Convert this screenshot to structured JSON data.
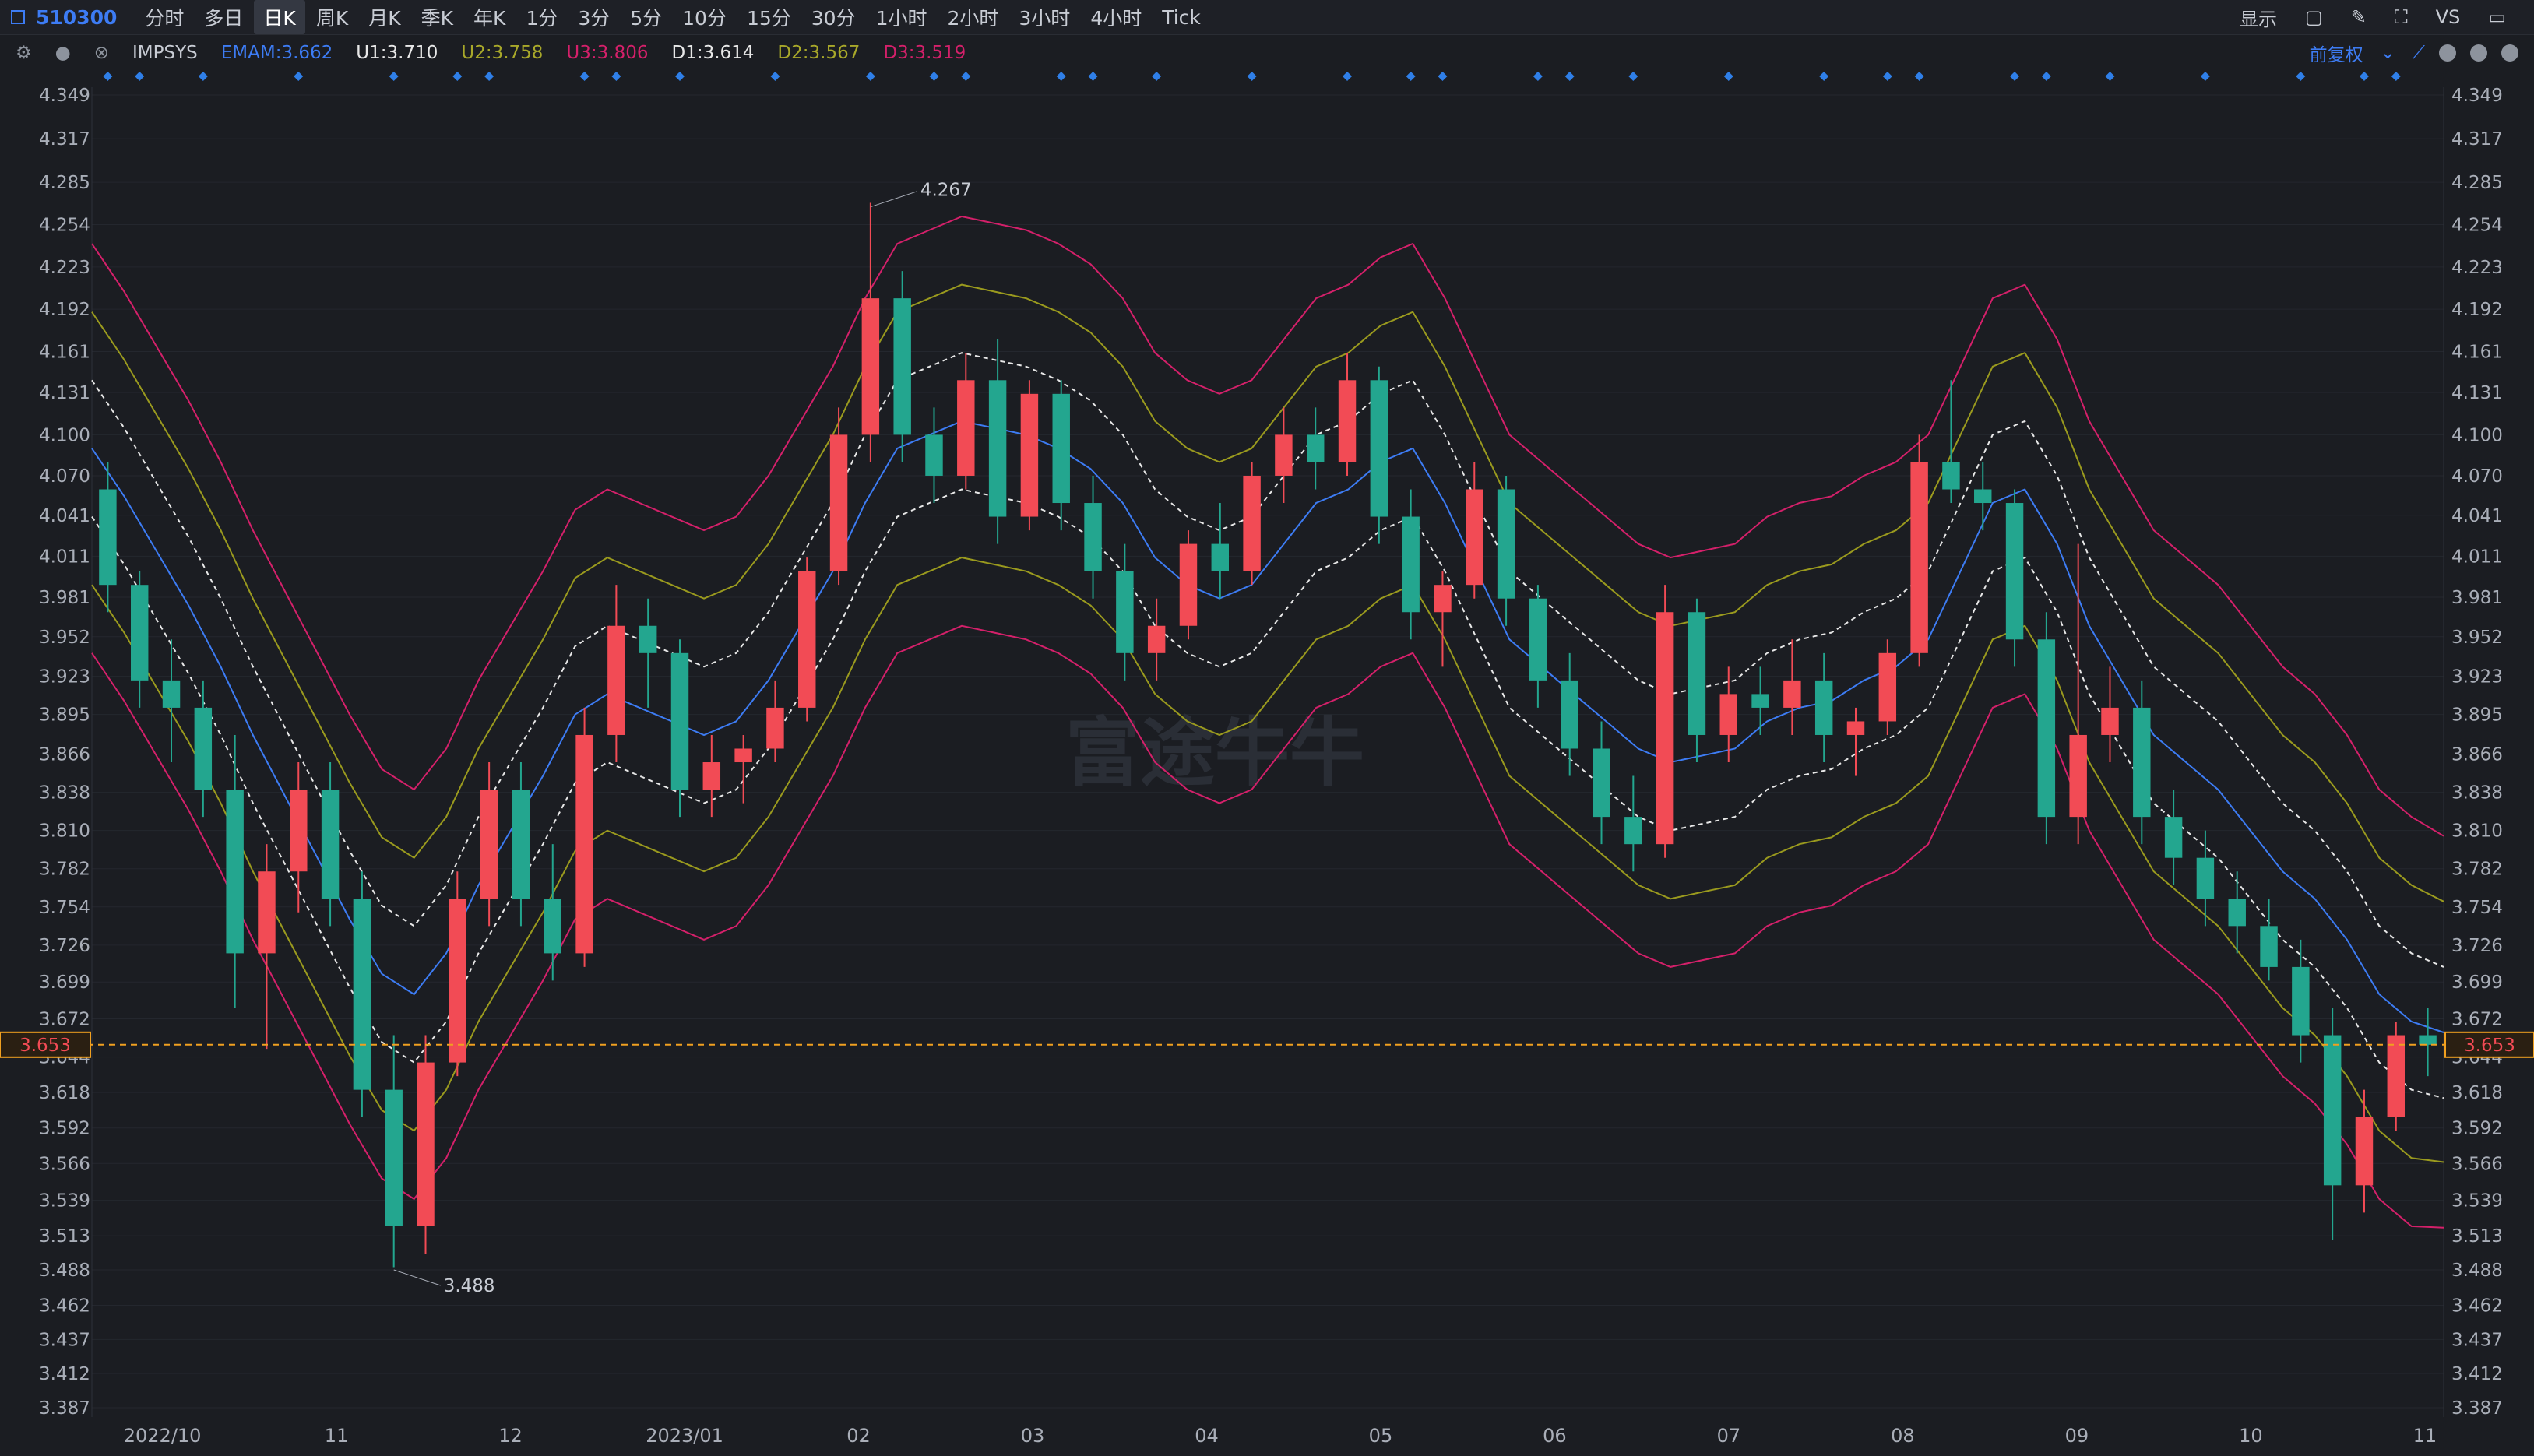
{
  "toolbar": {
    "symbol": "510300",
    "timeframes": [
      "分时",
      "多日",
      "日K",
      "周K",
      "月K",
      "季K",
      "年K",
      "1分",
      "3分",
      "5分",
      "10分",
      "15分",
      "30分",
      "1小时",
      "2小时",
      "3小时",
      "4小时",
      "Tick"
    ],
    "active_timeframe": "日K",
    "display_label": "显示",
    "vs_label": "VS"
  },
  "indicators": {
    "name": "IMPSYS",
    "emam": "EMAM:3.662",
    "u1": "U1:3.710",
    "u2": "U2:3.758",
    "u3": "U3:3.806",
    "d1": "D1:3.614",
    "d2": "D2:3.567",
    "d3": "D3:3.519",
    "adjust_label": "前复权"
  },
  "colors": {
    "background": "#1b1d22",
    "up": "#f24b55",
    "down": "#23a68f",
    "doji": "#b4bcd0",
    "emam": "#3d7cf4",
    "band1": "#e8e8e8",
    "band2": "#9a9a1e",
    "band3": "#d4206a",
    "price_line": "#f0a020"
  },
  "watermark": "富途牛牛",
  "chart_data": {
    "type": "candlestick",
    "ylim": [
      3.387,
      4.349
    ],
    "y_ticks": [
      "4.349",
      "4.317",
      "4.285",
      "4.254",
      "4.223",
      "4.192",
      "4.161",
      "4.131",
      "4.100",
      "4.070",
      "4.041",
      "4.011",
      "3.981",
      "3.952",
      "3.923",
      "3.895",
      "3.866",
      "3.838",
      "3.810",
      "3.782",
      "3.754",
      "3.726",
      "3.699",
      "3.672",
      "3.644",
      "3.618",
      "3.592",
      "3.566",
      "3.539",
      "3.513",
      "3.488",
      "3.462",
      "3.437",
      "3.412",
      "3.387"
    ],
    "x_ticks": [
      "2022/10",
      "11",
      "12",
      "2023/01",
      "02",
      "03",
      "04",
      "05",
      "06",
      "07",
      "08",
      "09",
      "10",
      "11"
    ],
    "current_price": "3.653",
    "annotations": {
      "high": "4.267",
      "low": "3.488"
    },
    "series": [
      {
        "name": "EMAM",
        "values": [
          4.09,
          4.055,
          4.015,
          3.975,
          3.93,
          3.88,
          3.835,
          3.79,
          3.745,
          3.705,
          3.69,
          3.72,
          3.77,
          3.81,
          3.85,
          3.895,
          3.91,
          3.9,
          3.89,
          3.88,
          3.89,
          3.92,
          3.96,
          4.0,
          4.05,
          4.09,
          4.1,
          4.11,
          4.105,
          4.1,
          4.09,
          4.075,
          4.05,
          4.01,
          3.99,
          3.98,
          3.99,
          4.02,
          4.05,
          4.06,
          4.08,
          4.09,
          4.05,
          4.0,
          3.95,
          3.93,
          3.91,
          3.89,
          3.87,
          3.86,
          3.865,
          3.87,
          3.89,
          3.9,
          3.905,
          3.92,
          3.93,
          3.95,
          4.0,
          4.05,
          4.06,
          4.02,
          3.96,
          3.92,
          3.88,
          3.86,
          3.84,
          3.81,
          3.78,
          3.76,
          3.73,
          3.69,
          3.67,
          3.662
        ]
      },
      {
        "name": "U1",
        "values": [
          4.14,
          4.105,
          4.065,
          4.025,
          3.98,
          3.93,
          3.885,
          3.84,
          3.795,
          3.755,
          3.74,
          3.77,
          3.82,
          3.86,
          3.9,
          3.945,
          3.96,
          3.95,
          3.94,
          3.93,
          3.94,
          3.97,
          4.01,
          4.05,
          4.1,
          4.14,
          4.15,
          4.16,
          4.155,
          4.15,
          4.14,
          4.125,
          4.1,
          4.06,
          4.04,
          4.03,
          4.04,
          4.07,
          4.1,
          4.11,
          4.13,
          4.14,
          4.1,
          4.05,
          4.0,
          3.98,
          3.96,
          3.94,
          3.92,
          3.91,
          3.915,
          3.92,
          3.94,
          3.95,
          3.955,
          3.97,
          3.98,
          4.0,
          4.05,
          4.1,
          4.11,
          4.07,
          4.01,
          3.97,
          3.93,
          3.91,
          3.89,
          3.86,
          3.83,
          3.81,
          3.78,
          3.74,
          3.72,
          3.71
        ]
      },
      {
        "name": "D1",
        "values": [
          4.04,
          4.005,
          3.965,
          3.925,
          3.88,
          3.83,
          3.785,
          3.74,
          3.695,
          3.655,
          3.64,
          3.67,
          3.72,
          3.76,
          3.8,
          3.845,
          3.86,
          3.85,
          3.84,
          3.83,
          3.84,
          3.87,
          3.91,
          3.95,
          4.0,
          4.04,
          4.05,
          4.06,
          4.055,
          4.05,
          4.04,
          4.025,
          4.0,
          3.96,
          3.94,
          3.93,
          3.94,
          3.97,
          4.0,
          4.01,
          4.03,
          4.04,
          4.0,
          3.95,
          3.9,
          3.88,
          3.86,
          3.84,
          3.82,
          3.81,
          3.815,
          3.82,
          3.84,
          3.85,
          3.855,
          3.87,
          3.88,
          3.9,
          3.95,
          4.0,
          4.01,
          3.97,
          3.91,
          3.87,
          3.83,
          3.81,
          3.79,
          3.76,
          3.73,
          3.71,
          3.68,
          3.64,
          3.62,
          3.614
        ]
      },
      {
        "name": "U2",
        "values": [
          4.19,
          4.155,
          4.115,
          4.075,
          4.03,
          3.98,
          3.935,
          3.89,
          3.845,
          3.805,
          3.79,
          3.82,
          3.87,
          3.91,
          3.95,
          3.995,
          4.01,
          4.0,
          3.99,
          3.98,
          3.99,
          4.02,
          4.06,
          4.1,
          4.15,
          4.19,
          4.2,
          4.21,
          4.205,
          4.2,
          4.19,
          4.175,
          4.15,
          4.11,
          4.09,
          4.08,
          4.09,
          4.12,
          4.15,
          4.16,
          4.18,
          4.19,
          4.15,
          4.1,
          4.05,
          4.03,
          4.01,
          3.99,
          3.97,
          3.96,
          3.965,
          3.97,
          3.99,
          4.0,
          4.005,
          4.02,
          4.03,
          4.05,
          4.1,
          4.15,
          4.16,
          4.12,
          4.06,
          4.02,
          3.98,
          3.96,
          3.94,
          3.91,
          3.88,
          3.86,
          3.83,
          3.79,
          3.77,
          3.758
        ]
      },
      {
        "name": "D2",
        "values": [
          3.99,
          3.955,
          3.915,
          3.875,
          3.83,
          3.78,
          3.735,
          3.69,
          3.645,
          3.605,
          3.59,
          3.62,
          3.67,
          3.71,
          3.75,
          3.795,
          3.81,
          3.8,
          3.79,
          3.78,
          3.79,
          3.82,
          3.86,
          3.9,
          3.95,
          3.99,
          4.0,
          4.01,
          4.005,
          4.0,
          3.99,
          3.975,
          3.95,
          3.91,
          3.89,
          3.88,
          3.89,
          3.92,
          3.95,
          3.96,
          3.98,
          3.99,
          3.95,
          3.9,
          3.85,
          3.83,
          3.81,
          3.79,
          3.77,
          3.76,
          3.765,
          3.77,
          3.79,
          3.8,
          3.805,
          3.82,
          3.83,
          3.85,
          3.9,
          3.95,
          3.96,
          3.92,
          3.86,
          3.82,
          3.78,
          3.76,
          3.74,
          3.71,
          3.68,
          3.66,
          3.63,
          3.59,
          3.57,
          3.567
        ]
      },
      {
        "name": "U3",
        "values": [
          4.24,
          4.205,
          4.165,
          4.125,
          4.08,
          4.03,
          3.985,
          3.94,
          3.895,
          3.855,
          3.84,
          3.87,
          3.92,
          3.96,
          4.0,
          4.045,
          4.06,
          4.05,
          4.04,
          4.03,
          4.04,
          4.07,
          4.11,
          4.15,
          4.2,
          4.24,
          4.25,
          4.26,
          4.255,
          4.25,
          4.24,
          4.225,
          4.2,
          4.16,
          4.14,
          4.13,
          4.14,
          4.17,
          4.2,
          4.21,
          4.23,
          4.24,
          4.2,
          4.15,
          4.1,
          4.08,
          4.06,
          4.04,
          4.02,
          4.01,
          4.015,
          4.02,
          4.04,
          4.05,
          4.055,
          4.07,
          4.08,
          4.1,
          4.15,
          4.2,
          4.21,
          4.17,
          4.11,
          4.07,
          4.03,
          4.01,
          3.99,
          3.96,
          3.93,
          3.91,
          3.88,
          3.84,
          3.82,
          3.806
        ]
      },
      {
        "name": "D3",
        "values": [
          3.94,
          3.905,
          3.865,
          3.825,
          3.78,
          3.73,
          3.685,
          3.64,
          3.595,
          3.555,
          3.54,
          3.57,
          3.62,
          3.66,
          3.7,
          3.745,
          3.76,
          3.75,
          3.74,
          3.73,
          3.74,
          3.77,
          3.81,
          3.85,
          3.9,
          3.94,
          3.95,
          3.96,
          3.955,
          3.95,
          3.94,
          3.925,
          3.9,
          3.86,
          3.84,
          3.83,
          3.84,
          3.87,
          3.9,
          3.91,
          3.93,
          3.94,
          3.9,
          3.85,
          3.8,
          3.78,
          3.76,
          3.74,
          3.72,
          3.71,
          3.715,
          3.72,
          3.74,
          3.75,
          3.755,
          3.77,
          3.78,
          3.8,
          3.85,
          3.9,
          3.91,
          3.87,
          3.81,
          3.77,
          3.73,
          3.71,
          3.69,
          3.66,
          3.63,
          3.61,
          3.58,
          3.54,
          3.52,
          3.519
        ]
      }
    ],
    "candles": [
      {
        "o": 4.06,
        "h": 4.08,
        "l": 3.97,
        "c": 3.99
      },
      {
        "o": 3.99,
        "h": 4.0,
        "l": 3.9,
        "c": 3.92
      },
      {
        "o": 3.92,
        "h": 3.95,
        "l": 3.86,
        "c": 3.9
      },
      {
        "o": 3.9,
        "h": 3.92,
        "l": 3.82,
        "c": 3.84
      },
      {
        "o": 3.84,
        "h": 3.88,
        "l": 3.68,
        "c": 3.72
      },
      {
        "o": 3.72,
        "h": 3.8,
        "l": 3.65,
        "c": 3.78
      },
      {
        "o": 3.78,
        "h": 3.86,
        "l": 3.75,
        "c": 3.84
      },
      {
        "o": 3.84,
        "h": 3.86,
        "l": 3.74,
        "c": 3.76
      },
      {
        "o": 3.76,
        "h": 3.78,
        "l": 3.6,
        "c": 3.62
      },
      {
        "o": 3.62,
        "h": 3.66,
        "l": 3.49,
        "c": 3.52
      },
      {
        "o": 3.52,
        "h": 3.66,
        "l": 3.5,
        "c": 3.64
      },
      {
        "o": 3.64,
        "h": 3.78,
        "l": 3.63,
        "c": 3.76
      },
      {
        "o": 3.76,
        "h": 3.86,
        "l": 3.74,
        "c": 3.84
      },
      {
        "o": 3.84,
        "h": 3.86,
        "l": 3.74,
        "c": 3.76
      },
      {
        "o": 3.76,
        "h": 3.8,
        "l": 3.7,
        "c": 3.72
      },
      {
        "o": 3.72,
        "h": 3.9,
        "l": 3.71,
        "c": 3.88
      },
      {
        "o": 3.88,
        "h": 3.99,
        "l": 3.86,
        "c": 3.96
      },
      {
        "o": 3.96,
        "h": 3.98,
        "l": 3.9,
        "c": 3.94
      },
      {
        "o": 3.94,
        "h": 3.95,
        "l": 3.82,
        "c": 3.84
      },
      {
        "o": 3.84,
        "h": 3.88,
        "l": 3.82,
        "c": 3.86
      },
      {
        "o": 3.86,
        "h": 3.88,
        "l": 3.83,
        "c": 3.87
      },
      {
        "o": 3.87,
        "h": 3.92,
        "l": 3.86,
        "c": 3.9
      },
      {
        "o": 3.9,
        "h": 4.01,
        "l": 3.89,
        "c": 4.0
      },
      {
        "o": 4.0,
        "h": 4.12,
        "l": 3.99,
        "c": 4.1
      },
      {
        "o": 4.1,
        "h": 4.27,
        "l": 4.08,
        "c": 4.2
      },
      {
        "o": 4.2,
        "h": 4.22,
        "l": 4.08,
        "c": 4.1
      },
      {
        "o": 4.1,
        "h": 4.12,
        "l": 4.05,
        "c": 4.07
      },
      {
        "o": 4.07,
        "h": 4.16,
        "l": 4.06,
        "c": 4.14
      },
      {
        "o": 4.14,
        "h": 4.17,
        "l": 4.02,
        "c": 4.04
      },
      {
        "o": 4.04,
        "h": 4.14,
        "l": 4.03,
        "c": 4.13
      },
      {
        "o": 4.13,
        "h": 4.14,
        "l": 4.03,
        "c": 4.05
      },
      {
        "o": 4.05,
        "h": 4.07,
        "l": 3.98,
        "c": 4.0
      },
      {
        "o": 4.0,
        "h": 4.02,
        "l": 3.92,
        "c": 3.94
      },
      {
        "o": 3.94,
        "h": 3.98,
        "l": 3.92,
        "c": 3.96
      },
      {
        "o": 3.96,
        "h": 4.03,
        "l": 3.95,
        "c": 4.02
      },
      {
        "o": 4.02,
        "h": 4.05,
        "l": 3.98,
        "c": 4.0
      },
      {
        "o": 4.0,
        "h": 4.08,
        "l": 3.99,
        "c": 4.07
      },
      {
        "o": 4.07,
        "h": 4.12,
        "l": 4.05,
        "c": 4.1
      },
      {
        "o": 4.1,
        "h": 4.12,
        "l": 4.06,
        "c": 4.08
      },
      {
        "o": 4.08,
        "h": 4.16,
        "l": 4.07,
        "c": 4.14
      },
      {
        "o": 4.14,
        "h": 4.15,
        "l": 4.02,
        "c": 4.04
      },
      {
        "o": 4.04,
        "h": 4.06,
        "l": 3.95,
        "c": 3.97
      },
      {
        "o": 3.97,
        "h": 4.0,
        "l": 3.93,
        "c": 3.99
      },
      {
        "o": 3.99,
        "h": 4.08,
        "l": 3.98,
        "c": 4.06
      },
      {
        "o": 4.06,
        "h": 4.07,
        "l": 3.96,
        "c": 3.98
      },
      {
        "o": 3.98,
        "h": 3.99,
        "l": 3.9,
        "c": 3.92
      },
      {
        "o": 3.92,
        "h": 3.94,
        "l": 3.85,
        "c": 3.87
      },
      {
        "o": 3.87,
        "h": 3.89,
        "l": 3.8,
        "c": 3.82
      },
      {
        "o": 3.82,
        "h": 3.85,
        "l": 3.78,
        "c": 3.8
      },
      {
        "o": 3.8,
        "h": 3.99,
        "l": 3.79,
        "c": 3.97
      },
      {
        "o": 3.97,
        "h": 3.98,
        "l": 3.86,
        "c": 3.88
      },
      {
        "o": 3.88,
        "h": 3.93,
        "l": 3.86,
        "c": 3.91
      },
      {
        "o": 3.91,
        "h": 3.93,
        "l": 3.88,
        "c": 3.9
      },
      {
        "o": 3.9,
        "h": 3.95,
        "l": 3.88,
        "c": 3.92
      },
      {
        "o": 3.92,
        "h": 3.94,
        "l": 3.86,
        "c": 3.88
      },
      {
        "o": 3.88,
        "h": 3.9,
        "l": 3.85,
        "c": 3.89
      },
      {
        "o": 3.89,
        "h": 3.95,
        "l": 3.88,
        "c": 3.94
      },
      {
        "o": 3.94,
        "h": 4.1,
        "l": 3.93,
        "c": 4.08
      },
      {
        "o": 4.08,
        "h": 4.14,
        "l": 4.05,
        "c": 4.06
      },
      {
        "o": 4.06,
        "h": 4.08,
        "l": 4.03,
        "c": 4.05
      },
      {
        "o": 4.05,
        "h": 4.06,
        "l": 3.93,
        "c": 3.95
      },
      {
        "o": 3.95,
        "h": 3.97,
        "l": 3.8,
        "c": 3.82
      },
      {
        "o": 3.82,
        "h": 4.02,
        "l": 3.8,
        "c": 3.88
      },
      {
        "o": 3.88,
        "h": 3.93,
        "l": 3.86,
        "c": 3.9
      },
      {
        "o": 3.9,
        "h": 3.92,
        "l": 3.8,
        "c": 3.82
      },
      {
        "o": 3.82,
        "h": 3.84,
        "l": 3.77,
        "c": 3.79
      },
      {
        "o": 3.79,
        "h": 3.81,
        "l": 3.74,
        "c": 3.76
      },
      {
        "o": 3.76,
        "h": 3.78,
        "l": 3.72,
        "c": 3.74
      },
      {
        "o": 3.74,
        "h": 3.76,
        "l": 3.7,
        "c": 3.71
      },
      {
        "o": 3.71,
        "h": 3.73,
        "l": 3.64,
        "c": 3.66
      },
      {
        "o": 3.66,
        "h": 3.68,
        "l": 3.51,
        "c": 3.55
      },
      {
        "o": 3.55,
        "h": 3.62,
        "l": 3.53,
        "c": 3.6
      },
      {
        "o": 3.6,
        "h": 3.67,
        "l": 3.59,
        "c": 3.66
      },
      {
        "o": 3.66,
        "h": 3.68,
        "l": 3.63,
        "c": 3.653
      }
    ]
  }
}
